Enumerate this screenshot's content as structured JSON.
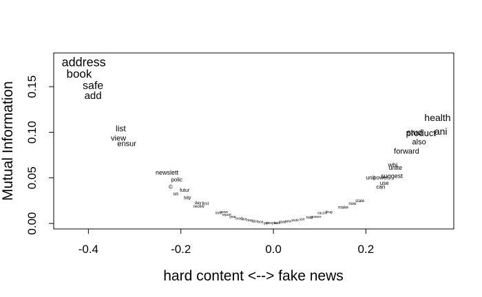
{
  "chart_data": {
    "type": "scatter",
    "title": "",
    "xlabel": "hard content <--> fake news",
    "ylabel": "Mutual Information",
    "xlim": [
      -0.475,
      0.39
    ],
    "ylim": [
      -0.006,
      0.187
    ],
    "grid": false,
    "legend": "none",
    "x_ticks": [
      {
        "value": -0.4,
        "label": "-0.4"
      },
      {
        "value": -0.2,
        "label": "-0.2"
      },
      {
        "value": 0.0,
        "label": "0.0"
      },
      {
        "value": 0.2,
        "label": "0.2"
      }
    ],
    "y_ticks": [
      {
        "value": 0.0,
        "label": "0.00"
      },
      {
        "value": 0.05,
        "label": "0.05"
      },
      {
        "value": 0.1,
        "label": "0.10"
      },
      {
        "value": 0.15,
        "label": "0.15"
      }
    ],
    "words": [
      {
        "text": "address",
        "x": -0.41,
        "y": 0.177,
        "size": 18
      },
      {
        "text": "book",
        "x": -0.42,
        "y": 0.164,
        "size": 17
      },
      {
        "text": "safe",
        "x": -0.39,
        "y": 0.151,
        "size": 16
      },
      {
        "text": "add",
        "x": -0.39,
        "y": 0.14,
        "size": 15
      },
      {
        "text": "list",
        "x": -0.33,
        "y": 0.104,
        "size": 12
      },
      {
        "text": "view",
        "x": -0.335,
        "y": 0.093,
        "size": 11
      },
      {
        "text": "ensur",
        "x": -0.317,
        "y": 0.087,
        "size": 11
      },
      {
        "text": "newslett",
        "x": -0.23,
        "y": 0.056,
        "size": 9
      },
      {
        "text": "polic",
        "x": -0.209,
        "y": 0.048,
        "size": 8
      },
      {
        "text": "©",
        "x": -0.222,
        "y": 0.04,
        "size": 8
      },
      {
        "text": "futur",
        "x": -0.192,
        "y": 0.036,
        "size": 7
      },
      {
        "text": "us",
        "x": -0.211,
        "y": 0.032,
        "size": 7
      },
      {
        "text": "say",
        "x": -0.186,
        "y": 0.028,
        "size": 7
      },
      {
        "text": "day",
        "x": -0.163,
        "y": 0.022,
        "size": 6
      },
      {
        "text": "first",
        "x": -0.147,
        "y": 0.021,
        "size": 6
      },
      {
        "text": "receiv",
        "x": -0.161,
        "y": 0.018,
        "size": 6
      },
      {
        "text": "news",
        "x": -0.107,
        "y": 0.012,
        "size": 5
      },
      {
        "text": "time",
        "x": -0.118,
        "y": 0.011,
        "size": 5
      },
      {
        "text": "report",
        "x": -0.101,
        "y": 0.009,
        "size": 5
      },
      {
        "text": "year",
        "x": -0.088,
        "y": 0.007,
        "size": 5
      },
      {
        "text": "read",
        "x": -0.075,
        "y": 0.005,
        "size": 5
      },
      {
        "text": "like",
        "x": -0.063,
        "y": 0.004,
        "size": 5
      },
      {
        "text": "may",
        "x": -0.051,
        "y": 0.003,
        "size": 5
      },
      {
        "text": "also",
        "x": -0.039,
        "y": 0.002,
        "size": 5
      },
      {
        "text": "one",
        "x": -0.028,
        "y": 0.001,
        "size": 5
      },
      {
        "text": "get",
        "x": -0.016,
        "y": 0.0,
        "size": 5
      },
      {
        "text": "people",
        "x": -0.004,
        "y": 0.0,
        "size": 5
      },
      {
        "text": "said",
        "x": 0.008,
        "y": 0.0,
        "size": 5
      },
      {
        "text": "state",
        "x": 0.02,
        "y": 0.001,
        "size": 5
      },
      {
        "text": "new",
        "x": 0.032,
        "y": 0.002,
        "size": 5
      },
      {
        "text": "work",
        "x": 0.047,
        "y": 0.003,
        "size": 5
      },
      {
        "text": "use",
        "x": 0.062,
        "y": 0.004,
        "size": 5
      },
      {
        "text": "help",
        "x": 0.078,
        "y": 0.006,
        "size": 5
      },
      {
        "text": "govern",
        "x": 0.092,
        "y": 0.007,
        "size": 5
      },
      {
        "text": "vaccin",
        "x": 0.106,
        "y": 0.011,
        "size": 5
      },
      {
        "text": "drug",
        "x": 0.12,
        "y": 0.012,
        "size": 5
      },
      {
        "text": "make",
        "x": 0.151,
        "y": 0.017,
        "size": 6
      },
      {
        "text": "now",
        "x": 0.171,
        "y": 0.021,
        "size": 6
      },
      {
        "text": "state",
        "x": 0.187,
        "y": 0.024,
        "size": 6
      },
      {
        "text": "can",
        "x": 0.232,
        "y": 0.04,
        "size": 8
      },
      {
        "text": "use",
        "x": 0.24,
        "y": 0.044,
        "size": 8
      },
      {
        "text": "unit",
        "x": 0.21,
        "y": 0.05,
        "size": 8
      },
      {
        "text": "power",
        "x": 0.232,
        "y": 0.05,
        "size": 8
      },
      {
        "text": "suggest",
        "x": 0.256,
        "y": 0.052,
        "size": 9
      },
      {
        "text": "unite",
        "x": 0.264,
        "y": 0.061,
        "size": 9
      },
      {
        "text": "whi",
        "x": 0.258,
        "y": 0.064,
        "size": 9
      },
      {
        "text": "forward",
        "x": 0.288,
        "y": 0.079,
        "size": 11
      },
      {
        "text": "also",
        "x": 0.315,
        "y": 0.089,
        "size": 11
      },
      {
        "text": "stud",
        "x": 0.305,
        "y": 0.1,
        "size": 12
      },
      {
        "text": "product",
        "x": 0.319,
        "y": 0.099,
        "size": 13
      },
      {
        "text": "ani",
        "x": 0.362,
        "y": 0.101,
        "size": 14
      },
      {
        "text": "health",
        "x": 0.355,
        "y": 0.116,
        "size": 14
      }
    ]
  }
}
